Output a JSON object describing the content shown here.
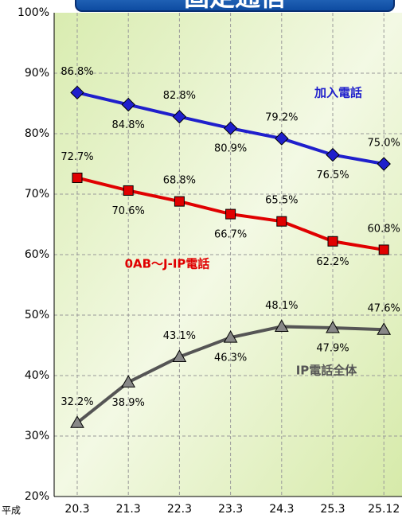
{
  "chart_data": {
    "type": "line",
    "title": "固定通信",
    "x_prefix": "平成",
    "categories": [
      "20.3",
      "21.3",
      "22.3",
      "23.3",
      "24.3",
      "25.3",
      "25.12"
    ],
    "series": [
      {
        "name": "加入電話",
        "color": "#1f1fcc",
        "marker": "diamond",
        "values": [
          86.8,
          84.8,
          82.8,
          80.9,
          79.2,
          76.5,
          75.0
        ],
        "value_labels": [
          "86.8%",
          "84.8%",
          "82.8%",
          "80.9%",
          "79.2%",
          "76.5%",
          "75.0%"
        ]
      },
      {
        "name": "0AB～J-IP電話",
        "color": "#e00000",
        "marker": "square",
        "values": [
          72.7,
          70.6,
          68.8,
          66.7,
          65.5,
          62.2,
          60.8
        ],
        "value_labels": [
          "72.7%",
          "70.6%",
          "68.8%",
          "66.7%",
          "65.5%",
          "62.2%",
          "60.8%"
        ]
      },
      {
        "name": "IP電話全体",
        "color": "#555555",
        "marker": "triangle",
        "values": [
          32.2,
          38.9,
          43.1,
          46.3,
          48.1,
          47.9,
          47.6
        ],
        "value_labels": [
          "32.2%",
          "38.9%",
          "43.1%",
          "46.3%",
          "48.1%",
          "47.9%",
          "47.6%"
        ]
      }
    ],
    "ylim": [
      20,
      100
    ],
    "yticks": [
      {
        "value": 20,
        "label": "20%"
      },
      {
        "value": 30,
        "label": "30%"
      },
      {
        "value": 40,
        "label": "40%"
      },
      {
        "value": 50,
        "label": "50%"
      },
      {
        "value": 60,
        "label": "60%"
      },
      {
        "value": 70,
        "label": "70%"
      },
      {
        "value": 80,
        "label": "80%"
      },
      {
        "value": 90,
        "label": "90%"
      },
      {
        "value": 100,
        "label": "100%"
      }
    ],
    "grid": true
  }
}
